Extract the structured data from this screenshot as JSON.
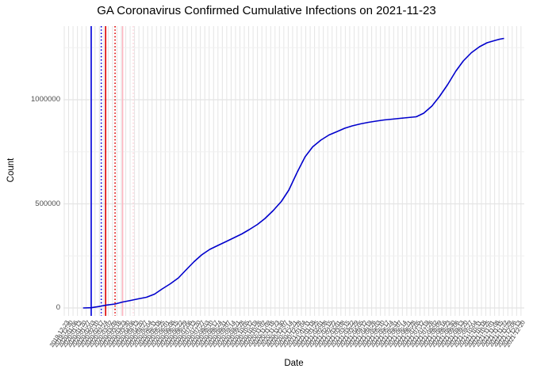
{
  "title": "GA Coronavirus Confirmed Cumulative Infections on 2021-11-23",
  "chart_data": {
    "type": "line",
    "title": "GA Coronavirus Confirmed Cumulative Infections on 2021-11-23",
    "xlabel": "Date",
    "ylabel": "Count",
    "grid": "on",
    "legend": "none",
    "line_color": "#0000CC",
    "grid_color_major": "#E4E4E4",
    "grid_color_minor": "#F0F0F0",
    "x_domain": [
      "2019-12-22",
      "2021-12-23"
    ],
    "ylim": [
      0,
      1353000
    ],
    "y_major_ticks": [
      0,
      500000,
      1000000
    ],
    "y_major_tick_labels": [
      "0",
      "500000",
      "1000000"
    ],
    "y_minor_ticks": [
      250000,
      750000,
      1250000
    ],
    "x_tick_labels": [
      "2019-12-23",
      "2019-12-30",
      "2020-01-06",
      "2020-01-13",
      "2020-01-20",
      "2020-01-27",
      "2020-02-03",
      "2020-02-10",
      "2020-02-17",
      "2020-02-24",
      "2020-03-02",
      "2020-03-09",
      "2020-03-16",
      "2020-03-23",
      "2020-03-30",
      "2020-04-06",
      "2020-04-13",
      "2020-04-20",
      "2020-04-27",
      "2020-05-04",
      "2020-05-11",
      "2020-05-18",
      "2020-05-25",
      "2020-06-01",
      "2020-06-08",
      "2020-06-15",
      "2020-06-22",
      "2020-06-29",
      "2020-07-06",
      "2020-07-13",
      "2020-07-20",
      "2020-07-27",
      "2020-08-03",
      "2020-08-10",
      "2020-08-17",
      "2020-08-24",
      "2020-08-31",
      "2020-09-07",
      "2020-09-14",
      "2020-09-21",
      "2020-09-28",
      "2020-10-05",
      "2020-10-12",
      "2020-10-19",
      "2020-10-26",
      "2020-11-02",
      "2020-11-09",
      "2020-11-16",
      "2020-11-23",
      "2020-11-30",
      "2020-12-07",
      "2020-12-14",
      "2020-12-21",
      "2020-12-28",
      "2021-01-04",
      "2021-01-11",
      "2021-01-18",
      "2021-01-25",
      "2021-02-01",
      "2021-02-08",
      "2021-02-15",
      "2021-02-22",
      "2021-03-01",
      "2021-03-08",
      "2021-03-15",
      "2021-03-22",
      "2021-03-29",
      "2021-04-05",
      "2021-04-12",
      "2021-04-19",
      "2021-04-26",
      "2021-05-03",
      "2021-05-10",
      "2021-05-17",
      "2021-05-24",
      "2021-05-31",
      "2021-06-07",
      "2021-06-14",
      "2021-06-21",
      "2021-06-28",
      "2021-07-05",
      "2021-07-12",
      "2021-07-19",
      "2021-07-26",
      "2021-08-02",
      "2021-08-09",
      "2021-08-16",
      "2021-08-23",
      "2021-08-30",
      "2021-09-06",
      "2021-09-13",
      "2021-09-20",
      "2021-09-27",
      "2021-10-04",
      "2021-10-11",
      "2021-10-18",
      "2021-10-25",
      "2021-11-01",
      "2021-11-08",
      "2021-11-15",
      "2021-11-22",
      "2021-11-29",
      "2021-12-06",
      "2021-12-13",
      "2021-12-20"
    ],
    "reference_lines": [
      {
        "date": "2020-02-04",
        "color": "#0000DD",
        "style": "solid"
      },
      {
        "date": "2020-02-20",
        "color": "#0000DD",
        "style": "dotted"
      },
      {
        "date": "2020-02-27",
        "color": "#DD0000",
        "style": "solid"
      },
      {
        "date": "2020-03-13",
        "color": "#DD0000",
        "style": "dotted"
      },
      {
        "date": "2020-03-25",
        "color": "#FFB6C1",
        "style": "solid"
      },
      {
        "date": "2020-04-11",
        "color": "#FFD4DB",
        "style": "dotted"
      }
    ],
    "series": [
      {
        "name": "confirmed_cumulative_infections",
        "points": [
          [
            "2020-01-22",
            0
          ],
          [
            "2020-02-04",
            1000
          ],
          [
            "2020-02-16",
            7000
          ],
          [
            "2020-02-29",
            14000
          ],
          [
            "2020-03-13",
            19000
          ],
          [
            "2020-03-25",
            28500
          ],
          [
            "2020-04-07",
            36100
          ],
          [
            "2020-04-19",
            43700
          ],
          [
            "2020-05-02",
            51300
          ],
          [
            "2020-05-15",
            66500
          ],
          [
            "2020-05-27",
            91200
          ],
          [
            "2020-06-09",
            116000
          ],
          [
            "2020-06-22",
            144500
          ],
          [
            "2020-07-04",
            182500
          ],
          [
            "2020-07-17",
            222400
          ],
          [
            "2020-07-29",
            254700
          ],
          [
            "2020-08-11",
            281300
          ],
          [
            "2020-08-24",
            300400
          ],
          [
            "2020-09-05",
            317500
          ],
          [
            "2020-09-18",
            336500
          ],
          [
            "2020-10-01",
            355500
          ],
          [
            "2020-10-13",
            376400
          ],
          [
            "2020-10-26",
            401100
          ],
          [
            "2020-11-07",
            429600
          ],
          [
            "2020-11-20",
            467600
          ],
          [
            "2020-12-03",
            511400
          ],
          [
            "2020-12-15",
            566500
          ],
          [
            "2020-12-28",
            650100
          ],
          [
            "2021-01-10",
            726200
          ],
          [
            "2021-01-22",
            773700
          ],
          [
            "2021-02-04",
            806000
          ],
          [
            "2021-02-17",
            830700
          ],
          [
            "2021-03-01",
            845900
          ],
          [
            "2021-03-14",
            863100
          ],
          [
            "2021-03-26",
            874500
          ],
          [
            "2021-04-08",
            884000
          ],
          [
            "2021-04-21",
            891600
          ],
          [
            "2021-05-03",
            897300
          ],
          [
            "2021-05-16",
            903000
          ],
          [
            "2021-05-29",
            906800
          ],
          [
            "2021-06-10",
            910600
          ],
          [
            "2021-06-23",
            914400
          ],
          [
            "2021-07-06",
            918200
          ],
          [
            "2021-07-18",
            935300
          ],
          [
            "2021-07-31",
            969500
          ],
          [
            "2021-08-12",
            1015100
          ],
          [
            "2021-08-25",
            1072200
          ],
          [
            "2021-09-07",
            1136800
          ],
          [
            "2021-09-19",
            1186200
          ],
          [
            "2021-10-02",
            1226100
          ],
          [
            "2021-10-15",
            1254700
          ],
          [
            "2021-10-27",
            1273700
          ],
          [
            "2021-11-09",
            1285100
          ],
          [
            "2021-11-16",
            1290800
          ],
          [
            "2021-11-23",
            1294600
          ]
        ]
      }
    ]
  }
}
